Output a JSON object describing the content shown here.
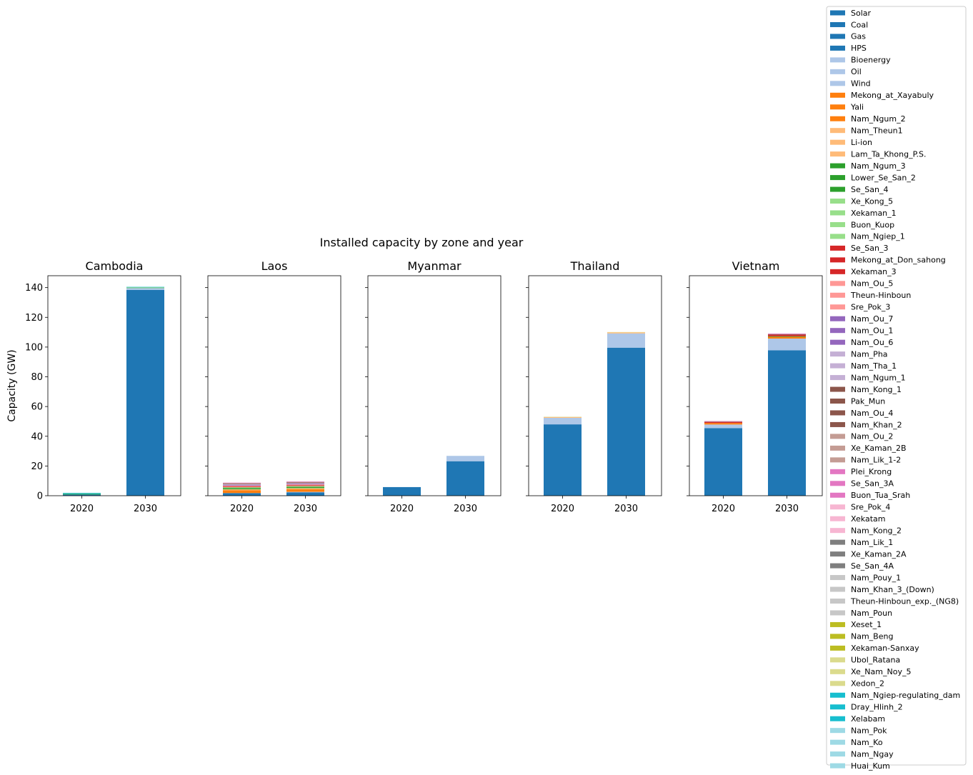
{
  "chart_data": {
    "type": "bar",
    "stacked": true,
    "title": "Installed capacity by zone and year",
    "ylabel": "Capacity (GW)",
    "ylim": [
      0,
      148
    ],
    "yticks": [
      0,
      20,
      40,
      60,
      80,
      100,
      120,
      140
    ],
    "categories": [
      "2020",
      "2030"
    ],
    "legend_position": "right",
    "legend": [
      {
        "name": "Solar",
        "color": "#1f77b4"
      },
      {
        "name": "Coal",
        "color": "#1f77b4"
      },
      {
        "name": "Gas",
        "color": "#1f77b4"
      },
      {
        "name": "HPS",
        "color": "#1f77b4"
      },
      {
        "name": "Bioenergy",
        "color": "#aec7e8"
      },
      {
        "name": "Oil",
        "color": "#aec7e8"
      },
      {
        "name": "Wind",
        "color": "#aec7e8"
      },
      {
        "name": "Mekong_at_Xayabuly",
        "color": "#ff7f0e"
      },
      {
        "name": "Yali",
        "color": "#ff7f0e"
      },
      {
        "name": "Nam_Ngum_2",
        "color": "#ff7f0e"
      },
      {
        "name": "Nam_Theun1",
        "color": "#ffbb78"
      },
      {
        "name": "Li-ion",
        "color": "#ffbb78"
      },
      {
        "name": "Lam_Ta_Khong_P.S.",
        "color": "#ffbb78"
      },
      {
        "name": "Nam_Ngum_3",
        "color": "#2ca02c"
      },
      {
        "name": "Lower_Se_San_2",
        "color": "#2ca02c"
      },
      {
        "name": "Se_San_4",
        "color": "#2ca02c"
      },
      {
        "name": "Xe_Kong_5",
        "color": "#98df8a"
      },
      {
        "name": "Xekaman_1",
        "color": "#98df8a"
      },
      {
        "name": "Buon_Kuop",
        "color": "#98df8a"
      },
      {
        "name": "Nam_Ngiep_1",
        "color": "#98df8a"
      },
      {
        "name": "Se_San_3",
        "color": "#d62728"
      },
      {
        "name": "Mekong_at_Don_sahong",
        "color": "#d62728"
      },
      {
        "name": "Xekaman_3",
        "color": "#d62728"
      },
      {
        "name": "Nam_Ou_5",
        "color": "#ff9896"
      },
      {
        "name": "Theun-Hinboun",
        "color": "#ff9896"
      },
      {
        "name": "Sre_Pok_3",
        "color": "#ff9896"
      },
      {
        "name": "Nam_Ou_7",
        "color": "#9467bd"
      },
      {
        "name": "Nam_Ou_1",
        "color": "#9467bd"
      },
      {
        "name": "Nam_Ou_6",
        "color": "#9467bd"
      },
      {
        "name": "Nam_Pha",
        "color": "#c5b0d5"
      },
      {
        "name": "Nam_Tha_1",
        "color": "#c5b0d5"
      },
      {
        "name": "Nam_Ngum_1",
        "color": "#c5b0d5"
      },
      {
        "name": "Nam_Kong_1",
        "color": "#8c564b"
      },
      {
        "name": "Pak_Mun",
        "color": "#8c564b"
      },
      {
        "name": "Nam_Ou_4",
        "color": "#8c564b"
      },
      {
        "name": "Nam_Khan_2",
        "color": "#8c564b"
      },
      {
        "name": "Nam_Ou_2",
        "color": "#c49c94"
      },
      {
        "name": "Xe_Kaman_2B",
        "color": "#c49c94"
      },
      {
        "name": "Nam_Lik_1-2",
        "color": "#c49c94"
      },
      {
        "name": "Plei_Krong",
        "color": "#e377c2"
      },
      {
        "name": "Se_San_3A",
        "color": "#e377c2"
      },
      {
        "name": "Buon_Tua_Srah",
        "color": "#e377c2"
      },
      {
        "name": "Sre_Pok_4",
        "color": "#f7b6d2"
      },
      {
        "name": "Xekatam",
        "color": "#f7b6d2"
      },
      {
        "name": "Nam_Kong_2",
        "color": "#f7b6d2"
      },
      {
        "name": "Nam_Lik_1",
        "color": "#7f7f7f"
      },
      {
        "name": "Xe_Kaman_2A",
        "color": "#7f7f7f"
      },
      {
        "name": "Se_San_4A",
        "color": "#7f7f7f"
      },
      {
        "name": "Nam_Pouy_1",
        "color": "#c7c7c7"
      },
      {
        "name": "Nam_Khan_3_(Down)",
        "color": "#c7c7c7"
      },
      {
        "name": "Theun-Hinboun_exp._(NG8)",
        "color": "#c7c7c7"
      },
      {
        "name": "Nam_Poun",
        "color": "#c7c7c7"
      },
      {
        "name": "Xeset_1",
        "color": "#bcbd22"
      },
      {
        "name": "Nam_Beng",
        "color": "#bcbd22"
      },
      {
        "name": "Xekaman-Sanxay",
        "color": "#bcbd22"
      },
      {
        "name": "Ubol_Ratana",
        "color": "#dbdb8d"
      },
      {
        "name": "Xe_Nam_Noy_5",
        "color": "#dbdb8d"
      },
      {
        "name": "Xedon_2",
        "color": "#dbdb8d"
      },
      {
        "name": "Nam_Ngiep-regulating_dam",
        "color": "#17becf"
      },
      {
        "name": "Dray_Hlinh_2",
        "color": "#17becf"
      },
      {
        "name": "Xelabam",
        "color": "#17becf"
      },
      {
        "name": "Nam_Pok",
        "color": "#9edae5"
      },
      {
        "name": "Nam_Ko",
        "color": "#9edae5"
      },
      {
        "name": "Nam_Ngay",
        "color": "#9edae5"
      },
      {
        "name": "Huai_Kum",
        "color": "#9edae5"
      }
    ],
    "panels": [
      {
        "title": "Cambodia",
        "stacks": {
          "2020": [
            {
              "color": "#1f77b4",
              "value": 0.8
            },
            {
              "color": "#2ca02c",
              "value": 0.4
            },
            {
              "color": "#17becf",
              "value": 0.6
            },
            {
              "color": "#9edae5",
              "value": 0.2
            }
          ],
          "2030": [
            {
              "color": "#1f77b4",
              "value": 138.5
            },
            {
              "color": "#aec7e8",
              "value": 1.2
            },
            {
              "color": "#2ca02c",
              "value": 0.3
            },
            {
              "color": "#98df8a",
              "value": 0.2
            },
            {
              "color": "#17becf",
              "value": 0.3
            }
          ]
        }
      },
      {
        "title": "Laos",
        "stacks": {
          "2020": [
            {
              "color": "#1f77b4",
              "value": 1.8
            },
            {
              "color": "#ff7f0e",
              "value": 1.8
            },
            {
              "color": "#ffbb78",
              "value": 0.7
            },
            {
              "color": "#2ca02c",
              "value": 0.8
            },
            {
              "color": "#98df8a",
              "value": 0.6
            },
            {
              "color": "#d62728",
              "value": 0.5
            },
            {
              "color": "#ff9896",
              "value": 0.6
            },
            {
              "color": "#9467bd",
              "value": 0.5
            },
            {
              "color": "#c5b0d5",
              "value": 0.4
            },
            {
              "color": "#8c564b",
              "value": 0.4
            },
            {
              "color": "#c49c94",
              "value": 0.4
            },
            {
              "color": "#e377c2",
              "value": 0.3
            }
          ],
          "2030": [
            {
              "color": "#1f77b4",
              "value": 2.3
            },
            {
              "color": "#aec7e8",
              "value": 0.3
            },
            {
              "color": "#ff7f0e",
              "value": 1.8
            },
            {
              "color": "#ffbb78",
              "value": 0.7
            },
            {
              "color": "#2ca02c",
              "value": 0.8
            },
            {
              "color": "#98df8a",
              "value": 0.6
            },
            {
              "color": "#d62728",
              "value": 0.5
            },
            {
              "color": "#ff9896",
              "value": 0.6
            },
            {
              "color": "#9467bd",
              "value": 0.5
            },
            {
              "color": "#c5b0d5",
              "value": 0.4
            },
            {
              "color": "#8c564b",
              "value": 0.4
            },
            {
              "color": "#c49c94",
              "value": 0.4
            },
            {
              "color": "#e377c2",
              "value": 0.3
            }
          ]
        }
      },
      {
        "title": "Myanmar",
        "stacks": {
          "2020": [
            {
              "color": "#1f77b4",
              "value": 5.8
            }
          ],
          "2030": [
            {
              "color": "#1f77b4",
              "value": 23.2
            },
            {
              "color": "#aec7e8",
              "value": 3.6
            }
          ]
        }
      },
      {
        "title": "Thailand",
        "stacks": {
          "2020": [
            {
              "color": "#1f77b4",
              "value": 48.0
            },
            {
              "color": "#aec7e8",
              "value": 4.4
            },
            {
              "color": "#ffbb78",
              "value": 0.5
            },
            {
              "color": "#dbdb8d",
              "value": 0.2
            }
          ],
          "2030": [
            {
              "color": "#1f77b4",
              "value": 99.6
            },
            {
              "color": "#aec7e8",
              "value": 9.6
            },
            {
              "color": "#ffbb78",
              "value": 0.7
            },
            {
              "color": "#dbdb8d",
              "value": 0.2
            }
          ]
        }
      },
      {
        "title": "Vietnam",
        "stacks": {
          "2020": [
            {
              "color": "#1f77b4",
              "value": 45.5
            },
            {
              "color": "#aec7e8",
              "value": 2.4
            },
            {
              "color": "#ff7f0e",
              "value": 1.0
            },
            {
              "color": "#d62728",
              "value": 0.7
            },
            {
              "color": "#8c564b",
              "value": 0.3
            },
            {
              "color": "#e377c2",
              "value": 0.3
            }
          ],
          "2030": [
            {
              "color": "#1f77b4",
              "value": 97.8
            },
            {
              "color": "#aec7e8",
              "value": 7.9
            },
            {
              "color": "#ff7f0e",
              "value": 1.2
            },
            {
              "color": "#2ca02c",
              "value": 0.4
            },
            {
              "color": "#d62728",
              "value": 1.0
            },
            {
              "color": "#8c564b",
              "value": 0.4
            },
            {
              "color": "#e377c2",
              "value": 0.4
            }
          ]
        }
      }
    ]
  }
}
